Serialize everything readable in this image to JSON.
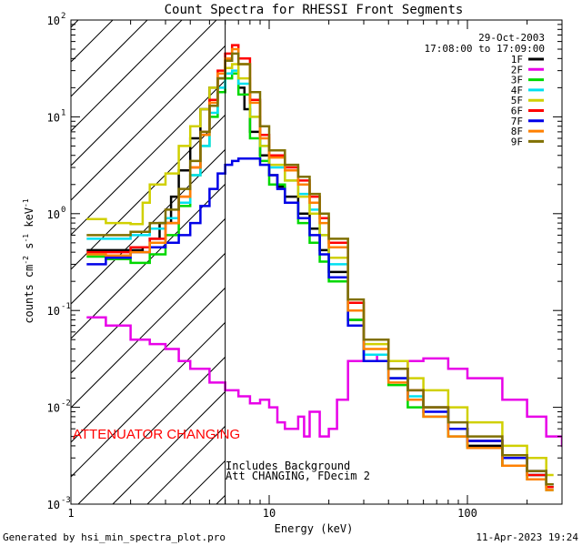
{
  "chart_data": {
    "type": "line",
    "title": "Count Spectra for RHESSI Front Segments",
    "xlabel": "Energy (keV)",
    "ylabel": "counts cm",
    "ylabel_sup1": "-2",
    "ylabel_s": "s",
    "ylabel_sup2": "-1",
    "ylabel_kev": "keV",
    "ylabel_sup3": "-1",
    "x_scale": "log",
    "y_scale": "log",
    "xlim": [
      1,
      300
    ],
    "ylim": [
      0.001,
      100
    ],
    "x_ticks": [
      {
        "v": 1,
        "label": "1"
      },
      {
        "v": 10,
        "label": "10"
      },
      {
        "v": 100,
        "label": "100"
      }
    ],
    "y_ticks": [
      {
        "v": 0.001,
        "base": "10",
        "exp": "-3"
      },
      {
        "v": 0.01,
        "base": "10",
        "exp": "-2"
      },
      {
        "v": 0.1,
        "base": "10",
        "exp": "-1"
      },
      {
        "v": 1,
        "base": "10",
        "exp": "0"
      },
      {
        "v": 10,
        "base": "10",
        "exp": "1"
      },
      {
        "v": 100,
        "base": "10",
        "exp": "2"
      }
    ],
    "date": "29-Oct-2003",
    "time_range": "17:08:00 to 17:09:00",
    "attenuator_text": "ATTENUATOR CHANGING",
    "background_note": "Includes Background",
    "att_note": "Att CHANGING, FDecim 2",
    "vertical_line_energy": 6,
    "hatch_region": [
      1,
      6
    ],
    "series": [
      {
        "name": "1F",
        "color": "#000000",
        "x": [
          1.2,
          1.5,
          2,
          2.3,
          2.5,
          2.8,
          3.2,
          3.5,
          4,
          4.5,
          5,
          5.5,
          6,
          6.5,
          7,
          7.5,
          8,
          9,
          10,
          11,
          12,
          14,
          16,
          18,
          20,
          25,
          30,
          40,
          50,
          60,
          80,
          100,
          150,
          200,
          250
        ],
        "y": [
          0.42,
          0.42,
          0.42,
          0.45,
          0.55,
          0.8,
          1.5,
          2.8,
          6,
          12,
          20,
          25,
          28,
          28,
          20,
          12,
          7,
          4,
          2.5,
          1.9,
          1.5,
          1.0,
          0.7,
          0.42,
          0.25,
          0.08,
          0.035,
          0.02,
          0.012,
          0.01,
          0.006,
          0.004,
          0.0025,
          0.002,
          0.0015
        ]
      },
      {
        "name": "2F",
        "color": "#e800e8",
        "x": [
          1.2,
          1.5,
          2,
          2.5,
          3,
          3.5,
          4,
          5,
          6,
          7,
          8,
          9,
          10,
          11,
          12,
          14,
          15,
          16,
          18,
          20,
          22,
          25,
          30,
          35,
          40,
          50,
          60,
          80,
          100,
          150,
          200,
          250,
          300
        ],
        "y": [
          0.085,
          0.07,
          0.05,
          0.045,
          0.04,
          0.03,
          0.025,
          0.018,
          0.015,
          0.013,
          0.011,
          0.012,
          0.01,
          0.007,
          0.006,
          0.008,
          0.005,
          0.009,
          0.005,
          0.006,
          0.012,
          0.03,
          0.035,
          0.03,
          0.025,
          0.03,
          0.032,
          0.025,
          0.02,
          0.012,
          0.008,
          0.005,
          0.004
        ]
      },
      {
        "name": "3F",
        "color": "#00d800",
        "x": [
          1.2,
          1.5,
          2,
          2.5,
          3,
          3.5,
          4,
          4.5,
          5,
          5.5,
          6,
          6.5,
          7,
          8,
          9,
          10,
          12,
          14,
          16,
          18,
          20,
          25,
          30,
          40,
          50,
          60,
          80,
          100,
          150,
          200,
          250
        ],
        "y": [
          0.36,
          0.34,
          0.31,
          0.38,
          0.6,
          1.2,
          2.5,
          5,
          10,
          18,
          25,
          28,
          17,
          6,
          3.5,
          2.0,
          1.3,
          0.8,
          0.5,
          0.32,
          0.2,
          0.08,
          0.03,
          0.017,
          0.01,
          0.008,
          0.005,
          0.0038,
          0.0025,
          0.0018,
          0.0014
        ]
      },
      {
        "name": "4F",
        "color": "#00e0f0",
        "x": [
          1.2,
          1.5,
          2,
          2.5,
          3,
          3.5,
          4,
          4.5,
          5,
          5.5,
          6,
          6.5,
          7,
          8,
          9,
          10,
          12,
          14,
          16,
          18,
          20,
          25,
          30,
          40,
          50,
          60,
          80,
          100,
          150,
          200,
          250
        ],
        "y": [
          0.55,
          0.55,
          0.6,
          0.7,
          0.9,
          1.3,
          2.5,
          5,
          11,
          20,
          28,
          30,
          22,
          10,
          5,
          3,
          2.2,
          1.6,
          1.1,
          0.6,
          0.3,
          0.07,
          0.035,
          0.02,
          0.013,
          0.01,
          0.006,
          0.0045,
          0.003,
          0.002,
          0.0016
        ]
      },
      {
        "name": "5F",
        "color": "#d0d000",
        "x": [
          1.2,
          1.5,
          2,
          2.3,
          2.5,
          3,
          3.5,
          4,
          4.5,
          5,
          5.5,
          6,
          6.5,
          7,
          8,
          9,
          10,
          12,
          14,
          16,
          18,
          20,
          25,
          30,
          40,
          50,
          60,
          80,
          100,
          150,
          200,
          250
        ],
        "y": [
          0.88,
          0.8,
          0.78,
          1.3,
          2,
          2.6,
          5,
          8,
          12,
          20,
          25,
          32,
          35,
          25,
          10,
          5,
          3.2,
          2.2,
          1.5,
          1.0,
          0.6,
          0.35,
          0.1,
          0.045,
          0.03,
          0.02,
          0.015,
          0.01,
          0.007,
          0.004,
          0.003,
          0.002
        ]
      },
      {
        "name": "6F",
        "color": "#ff0000",
        "x": [
          1.2,
          1.5,
          2,
          2.5,
          3,
          3.5,
          4,
          4.5,
          5,
          5.5,
          6,
          6.5,
          7,
          8,
          9,
          10,
          12,
          14,
          16,
          18,
          20,
          25,
          30,
          40,
          50,
          60,
          80,
          100,
          150,
          200,
          250
        ],
        "y": [
          0.4,
          0.4,
          0.45,
          0.55,
          0.8,
          1.5,
          3,
          7,
          15,
          30,
          45,
          55,
          40,
          15,
          6.5,
          4,
          3,
          2.2,
          1.5,
          0.9,
          0.5,
          0.12,
          0.05,
          0.025,
          0.015,
          0.01,
          0.006,
          0.0045,
          0.003,
          0.002,
          0.0015
        ]
      },
      {
        "name": "7F",
        "color": "#0000e8",
        "x": [
          1.2,
          1.5,
          2,
          2.5,
          3,
          3.5,
          4,
          4.5,
          5,
          5.5,
          6,
          6.5,
          7,
          8,
          9,
          10,
          11,
          12,
          14,
          16,
          18,
          20,
          25,
          30,
          40,
          50,
          60,
          80,
          100,
          150,
          200,
          250
        ],
        "y": [
          0.3,
          0.35,
          0.4,
          0.45,
          0.5,
          0.6,
          0.8,
          1.2,
          1.8,
          2.6,
          3.2,
          3.5,
          3.7,
          3.7,
          3.2,
          2.5,
          1.8,
          1.3,
          0.9,
          0.6,
          0.38,
          0.22,
          0.07,
          0.03,
          0.02,
          0.012,
          0.009,
          0.006,
          0.0045,
          0.003,
          0.0022,
          0.0016
        ]
      },
      {
        "name": "8F",
        "color": "#ff8000",
        "x": [
          1.2,
          1.5,
          2,
          2.5,
          3,
          3.5,
          4,
          4.5,
          5,
          5.5,
          6,
          6.5,
          7,
          8,
          9,
          10,
          12,
          14,
          16,
          18,
          20,
          25,
          30,
          40,
          50,
          60,
          80,
          100,
          150,
          200,
          250
        ],
        "y": [
          0.38,
          0.37,
          0.4,
          0.5,
          0.8,
          1.5,
          3,
          6.5,
          14,
          28,
          40,
          50,
          35,
          14,
          6,
          3.8,
          2.8,
          2.0,
          1.3,
          0.8,
          0.45,
          0.1,
          0.04,
          0.018,
          0.012,
          0.008,
          0.005,
          0.0038,
          0.0025,
          0.0018,
          0.0014
        ]
      },
      {
        "name": "9F",
        "color": "#807000",
        "x": [
          1.2,
          1.5,
          2,
          2.5,
          3,
          3.5,
          4,
          4.5,
          5,
          5.5,
          6,
          6.5,
          7,
          8,
          9,
          10,
          12,
          14,
          16,
          18,
          20,
          25,
          30,
          40,
          50,
          60,
          80,
          100,
          150,
          200,
          250
        ],
        "y": [
          0.6,
          0.6,
          0.65,
          0.8,
          1.1,
          1.8,
          3.5,
          7,
          13,
          25,
          38,
          45,
          35,
          18,
          8,
          4.5,
          3.2,
          2.4,
          1.6,
          1.0,
          0.55,
          0.13,
          0.05,
          0.025,
          0.015,
          0.01,
          0.007,
          0.005,
          0.0032,
          0.0022,
          0.0016
        ]
      }
    ]
  },
  "footer": {
    "generated_by": "Generated by hsi_min_spectra_plot.pro",
    "timestamp": "11-Apr-2023 19:24"
  }
}
